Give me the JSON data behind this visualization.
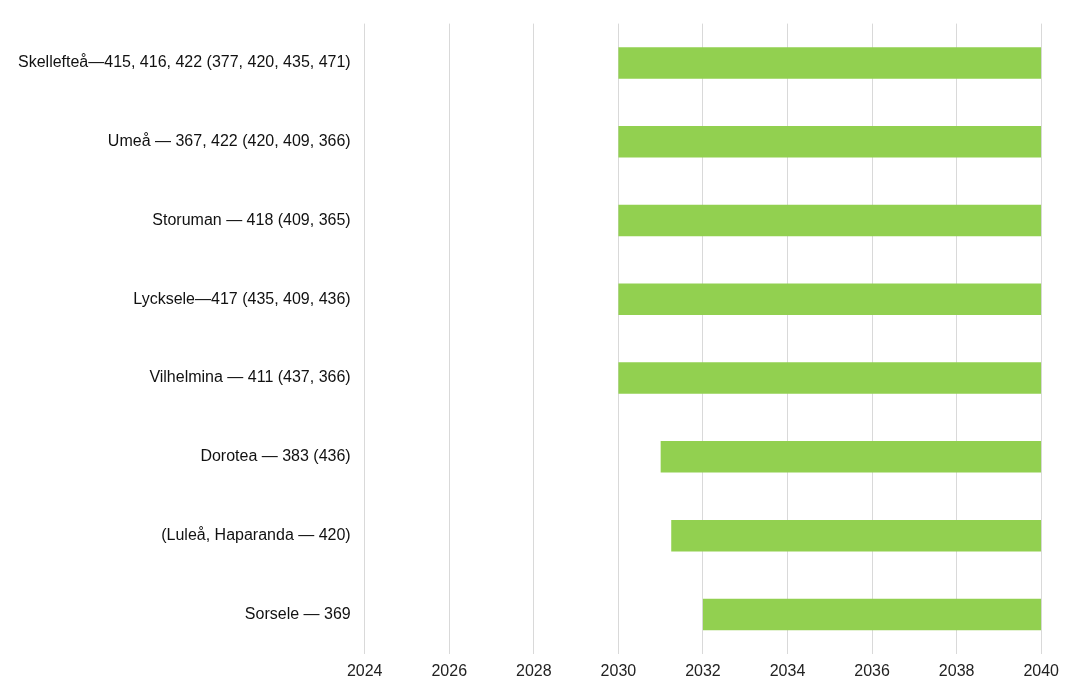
{
  "chart_data": {
    "type": "bar",
    "orientation": "horizontal",
    "categories": [
      "Skellefteå—415, 416, 422 (377, 420, 435, 471)",
      "Umeå — 367, 422 (420, 409, 366)",
      "Storuman — 418 (409, 365)",
      "Lycksele—417 (435, 409, 436)",
      "Vilhelmina — 411 (437, 366)",
      "Dorotea — 383 (436)",
      "(Luleå, Haparanda — 420)",
      "Sorsele — 369"
    ],
    "base": [
      2030,
      2030,
      2030,
      2030,
      2030,
      2031,
      2031.25,
      2032
    ],
    "values": [
      10,
      10,
      10,
      10,
      10,
      9,
      8.75,
      8
    ],
    "color": "#92d050",
    "xlim": [
      2024,
      2040
    ],
    "xticks": [
      2024,
      2026,
      2028,
      2030,
      2032,
      2034,
      2036,
      2038,
      2040
    ],
    "grid": "x"
  }
}
